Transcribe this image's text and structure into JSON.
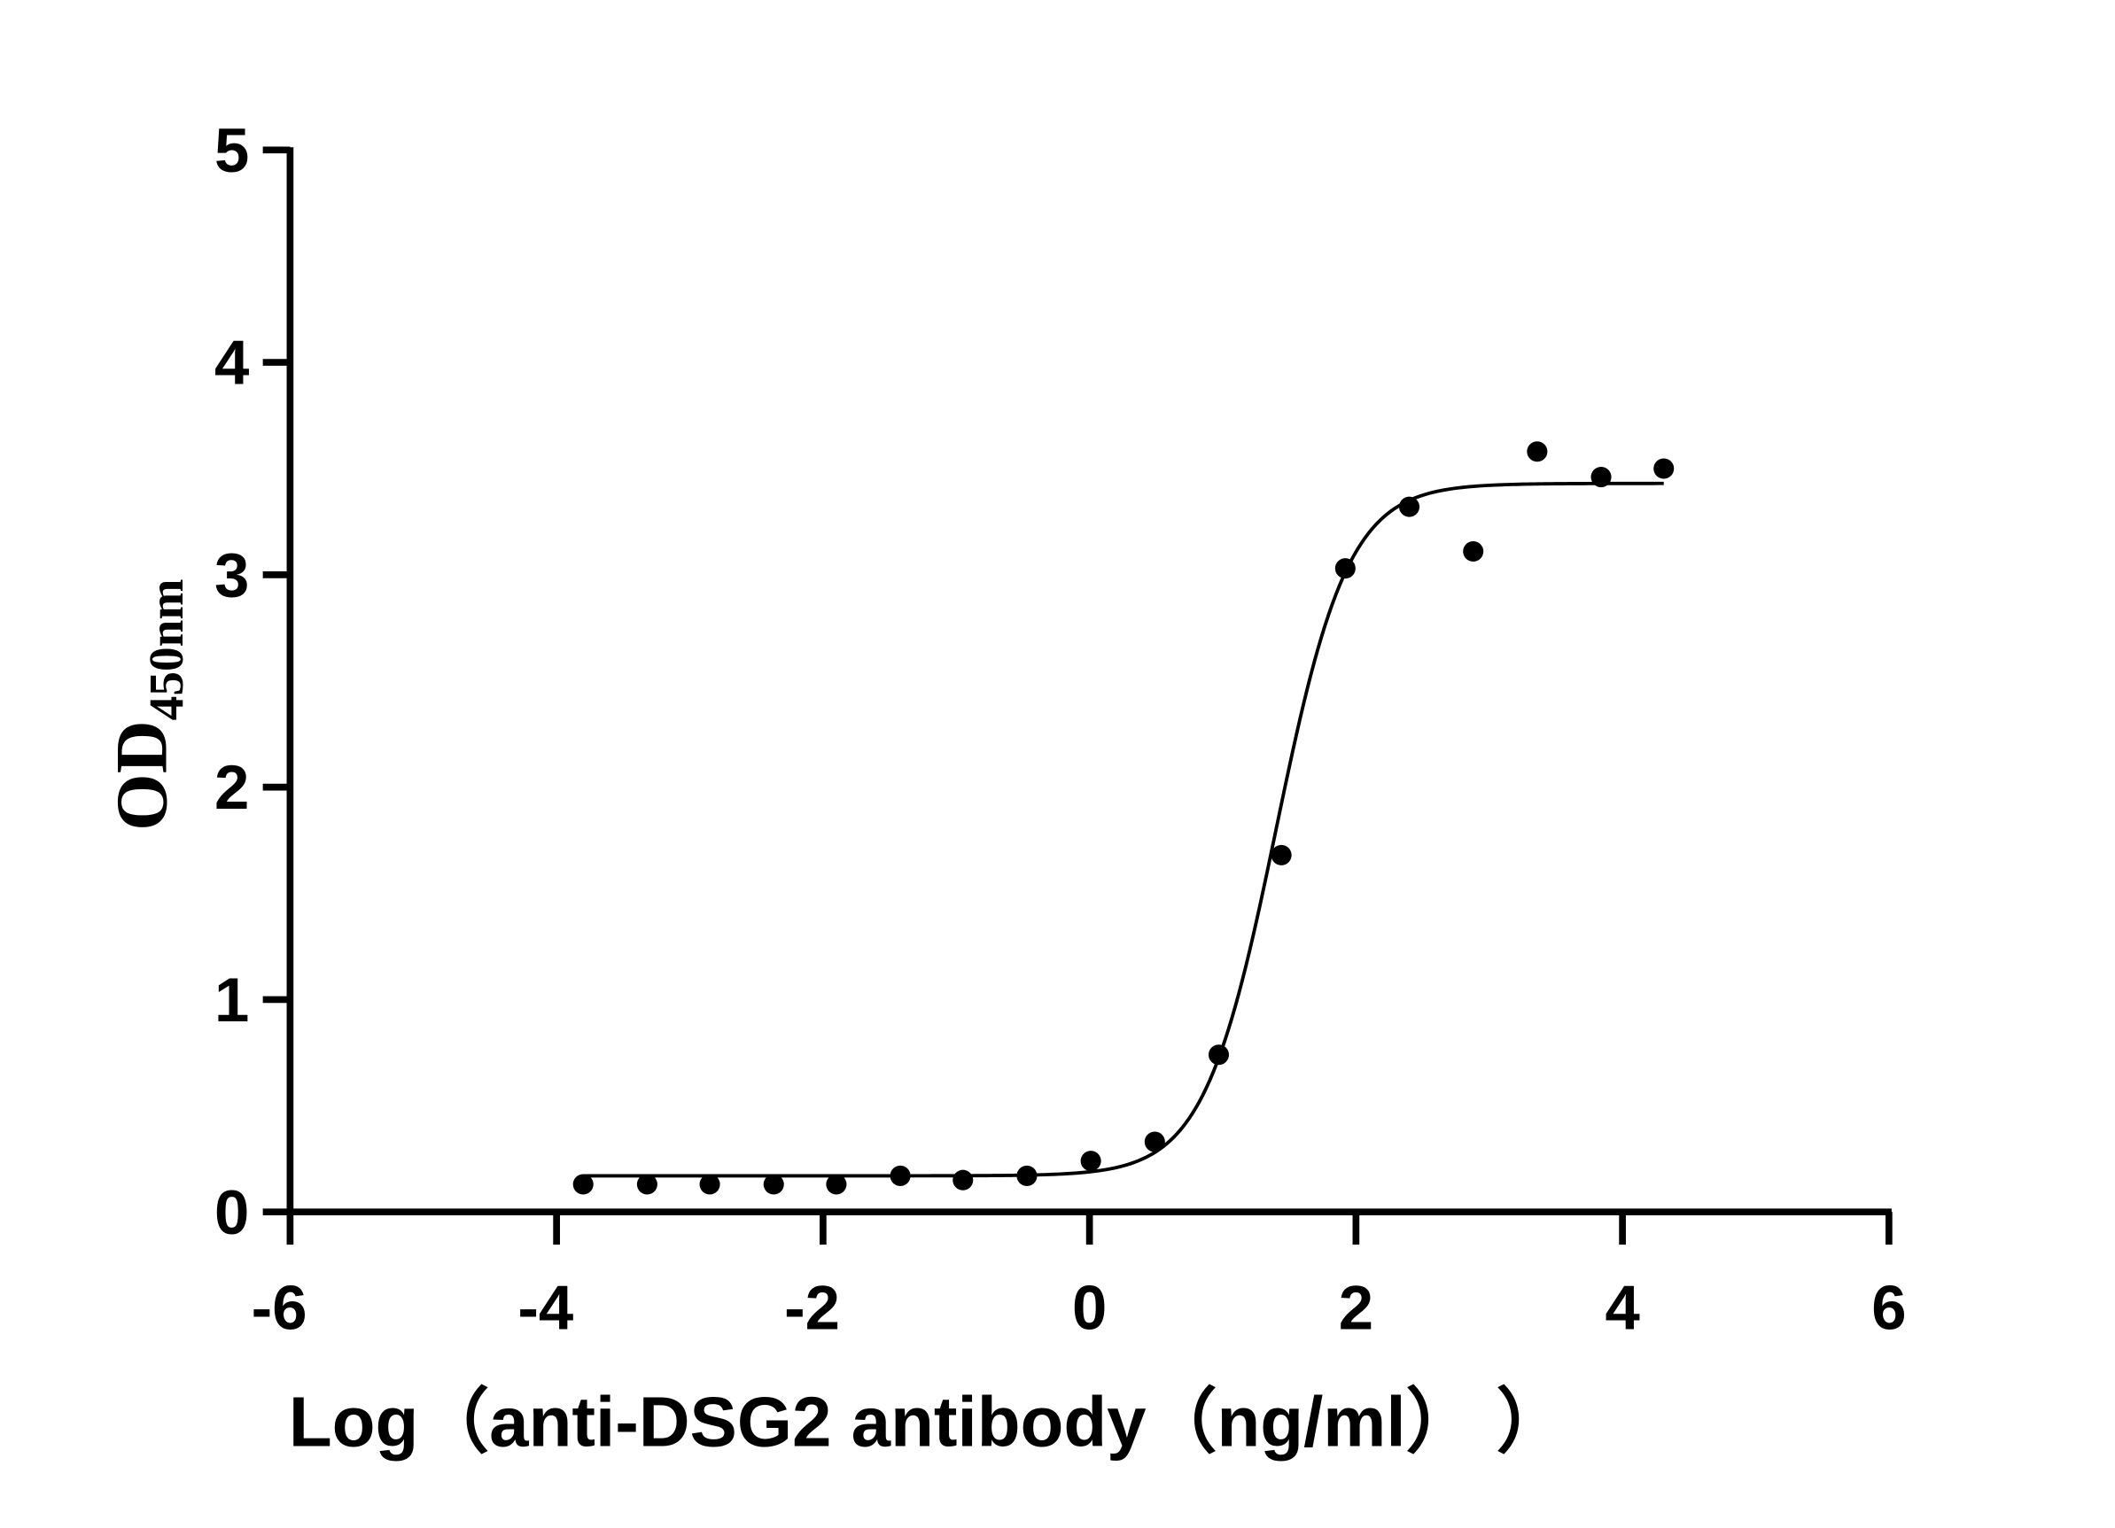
{
  "chart_data": {
    "type": "scatter",
    "title": "",
    "xlabel": "Log（anti-DSG2 antibody（ng/ml）  ）",
    "ylabel": {
      "main": "OD",
      "subscript": "450nm"
    },
    "xlim": [
      -6,
      6
    ],
    "ylim": [
      0,
      5
    ],
    "xticks": [
      -6,
      -4,
      -2,
      0,
      2,
      4,
      6
    ],
    "yticks": [
      0,
      1,
      2,
      3,
      4,
      5
    ],
    "grid": false,
    "legend": "none",
    "points": {
      "x": [
        -3.8,
        -3.32,
        -2.85,
        -2.37,
        -1.9,
        -1.42,
        -0.95,
        -0.47,
        0.01,
        0.49,
        0.97,
        1.44,
        1.92,
        2.4,
        2.88,
        3.36,
        3.84,
        4.31
      ],
      "y": [
        0.13,
        0.13,
        0.13,
        0.13,
        0.13,
        0.17,
        0.15,
        0.17,
        0.24,
        0.33,
        0.74,
        1.68,
        3.03,
        3.32,
        3.11,
        3.58,
        3.46,
        3.5
      ]
    },
    "fit": {
      "model": "4PL",
      "bottom": 0.17,
      "top": 3.43,
      "logEC50": 1.4,
      "hill": 1.6,
      "xrange": [
        -3.8,
        4.31
      ]
    },
    "colors": {
      "points": "#000000",
      "curve": "#000000",
      "axes": "#000000"
    }
  }
}
